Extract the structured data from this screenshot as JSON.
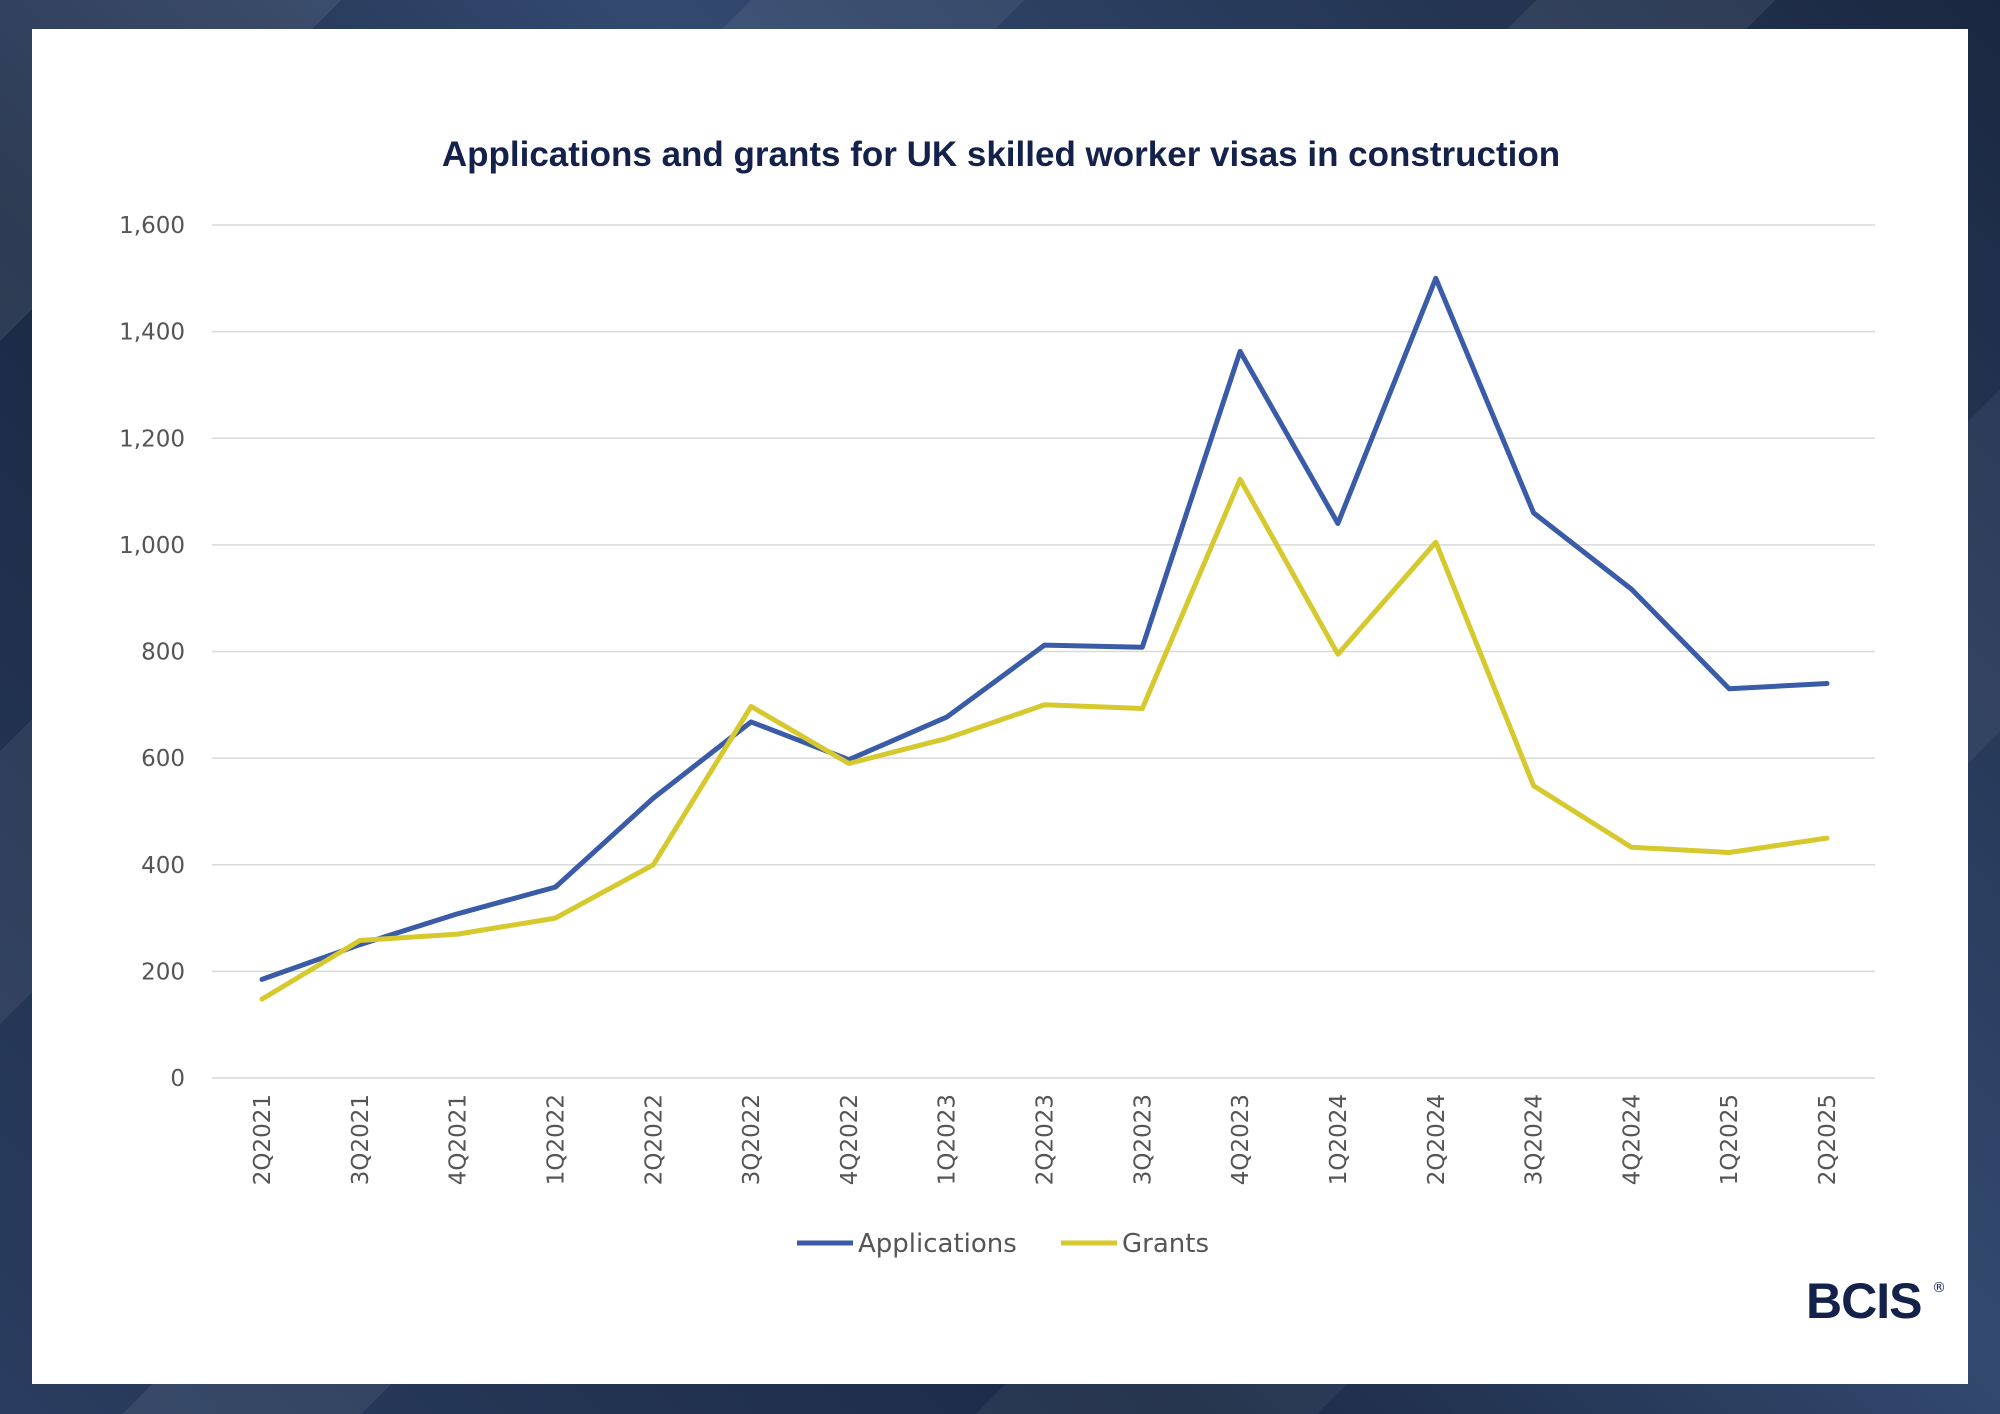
{
  "chart_data": {
    "type": "line",
    "title": "Applications and grants for UK skilled worker visas in construction",
    "xlabel": "",
    "ylabel": "",
    "ylim": [
      0,
      1600
    ],
    "yticks": [
      0,
      200,
      400,
      600,
      800,
      1000,
      1200,
      1400,
      1600
    ],
    "ytick_labels": [
      "0",
      "200",
      "400",
      "600",
      "800",
      "1,000",
      "1,200",
      "1,400",
      "1,600"
    ],
    "categories": [
      "2Q2021",
      "3Q2021",
      "4Q2021",
      "1Q2022",
      "2Q2022",
      "3Q2022",
      "4Q2022",
      "1Q2023",
      "2Q2023",
      "3Q2023",
      "4Q2023",
      "1Q2024",
      "2Q2024",
      "3Q2024",
      "4Q2024",
      "1Q2025",
      "2Q2025"
    ],
    "series": [
      {
        "name": "Applications",
        "color": "#3a5ca8",
        "values": [
          185,
          250,
          308,
          358,
          525,
          668,
          597,
          677,
          812,
          808,
          1363,
          1040,
          1500,
          1060,
          917,
          730,
          740
        ]
      },
      {
        "name": "Grants",
        "color": "#d6c92e",
        "values": [
          148,
          258,
          270,
          300,
          400,
          697,
          590,
          637,
          700,
          693,
          1123,
          795,
          1005,
          548,
          433,
          423,
          450
        ]
      }
    ],
    "grid": true,
    "legend_position": "bottom-center"
  },
  "logo": {
    "text": "BCIS",
    "mark": "®"
  }
}
